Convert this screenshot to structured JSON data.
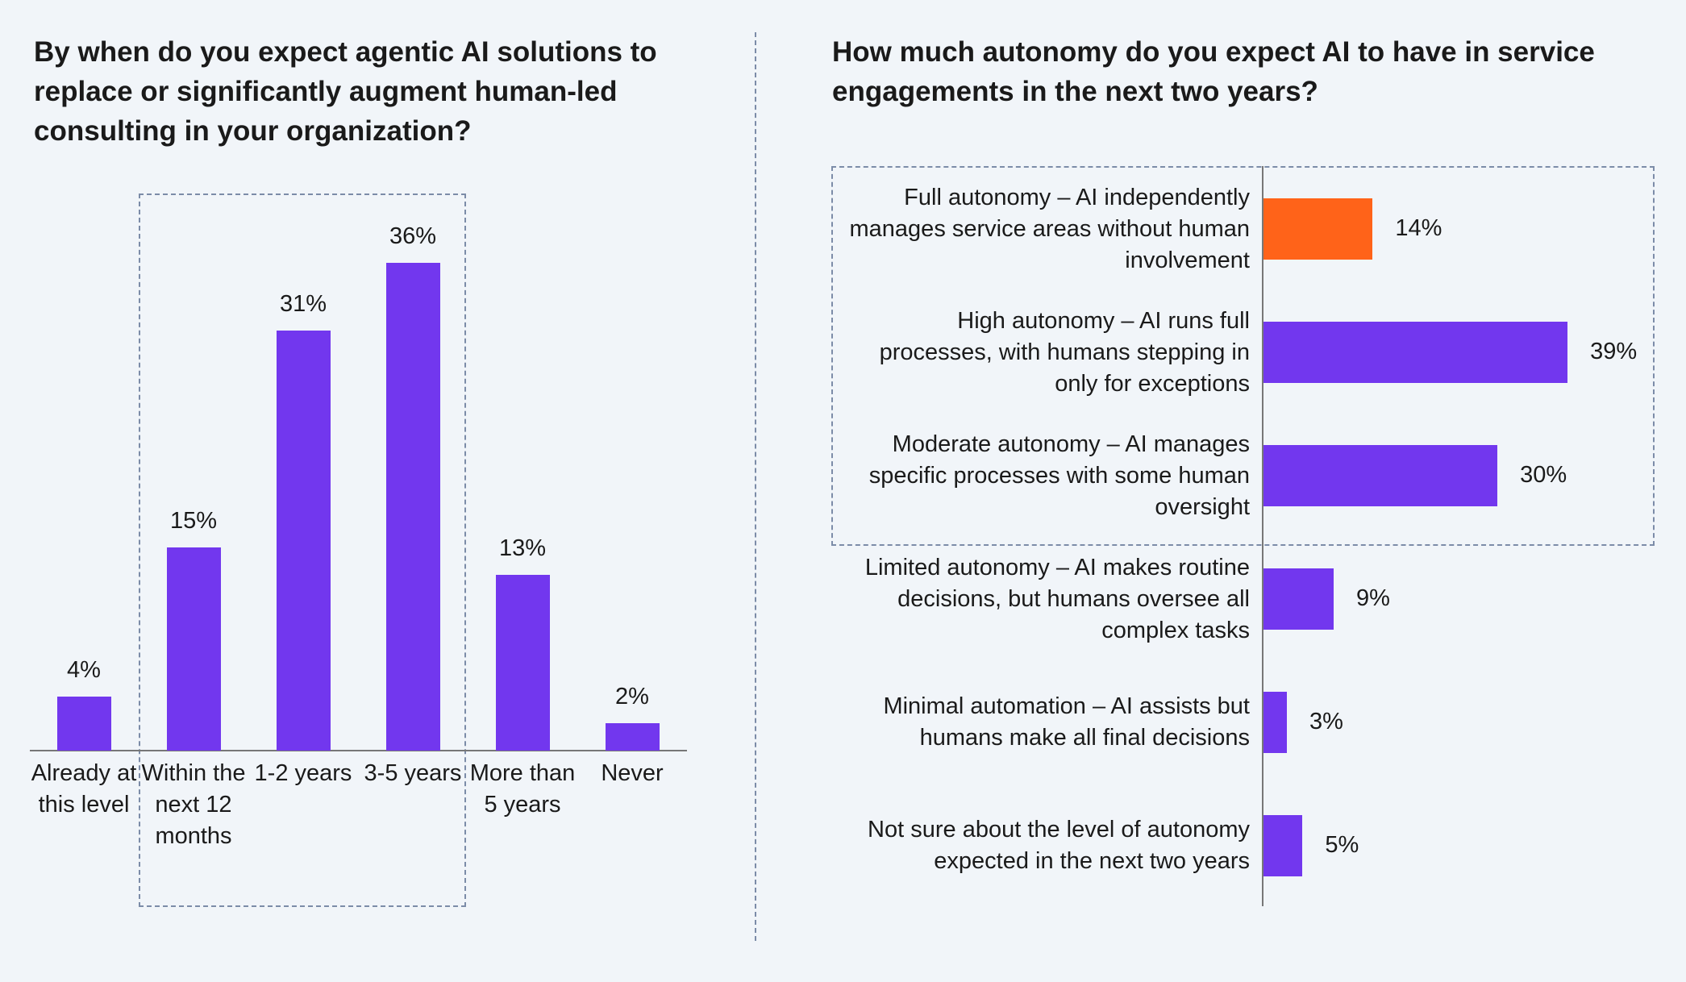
{
  "chart_data": [
    {
      "type": "bar",
      "orientation": "vertical",
      "title": "By when do you expect agentic AI solutions to replace or significantly augment human-led consulting in your organization?",
      "categories": [
        "Already at this level",
        "Within the next 12 months",
        "1-2 years",
        "3-5 years",
        "More than 5 years",
        "Never"
      ],
      "values": [
        4,
        15,
        31,
        36,
        13,
        2
      ],
      "value_labels": [
        "4%",
        "15%",
        "31%",
        "36%",
        "13%",
        "2%"
      ],
      "colors": [
        "#7237ee",
        "#7237ee",
        "#7237ee",
        "#7237ee",
        "#7237ee",
        "#7237ee"
      ]
    },
    {
      "type": "bar",
      "orientation": "horizontal",
      "title": "How much autonomy do you expect AI to have in service engagements in the next two years?",
      "categories": [
        "Full autonomy – AI independently manages service areas without human involvement",
        "High autonomy – AI runs full processes, with humans stepping in only for exceptions",
        "Moderate autonomy – AI manages specific processes with some human oversight",
        "Limited autonomy – AI makes routine decisions, but humans oversee all complex tasks",
        "Minimal automation – AI assists but humans make all final decisions",
        "Not sure about the level of autonomy expected in the next two years"
      ],
      "values": [
        14,
        39,
        30,
        9,
        3,
        5
      ],
      "value_labels": [
        "14%",
        "39%",
        "30%",
        "9%",
        "3%",
        "5%"
      ],
      "colors": [
        "#ff6319",
        "#7237ee",
        "#7237ee",
        "#7237ee",
        "#7237ee",
        "#7237ee"
      ]
    }
  ]
}
